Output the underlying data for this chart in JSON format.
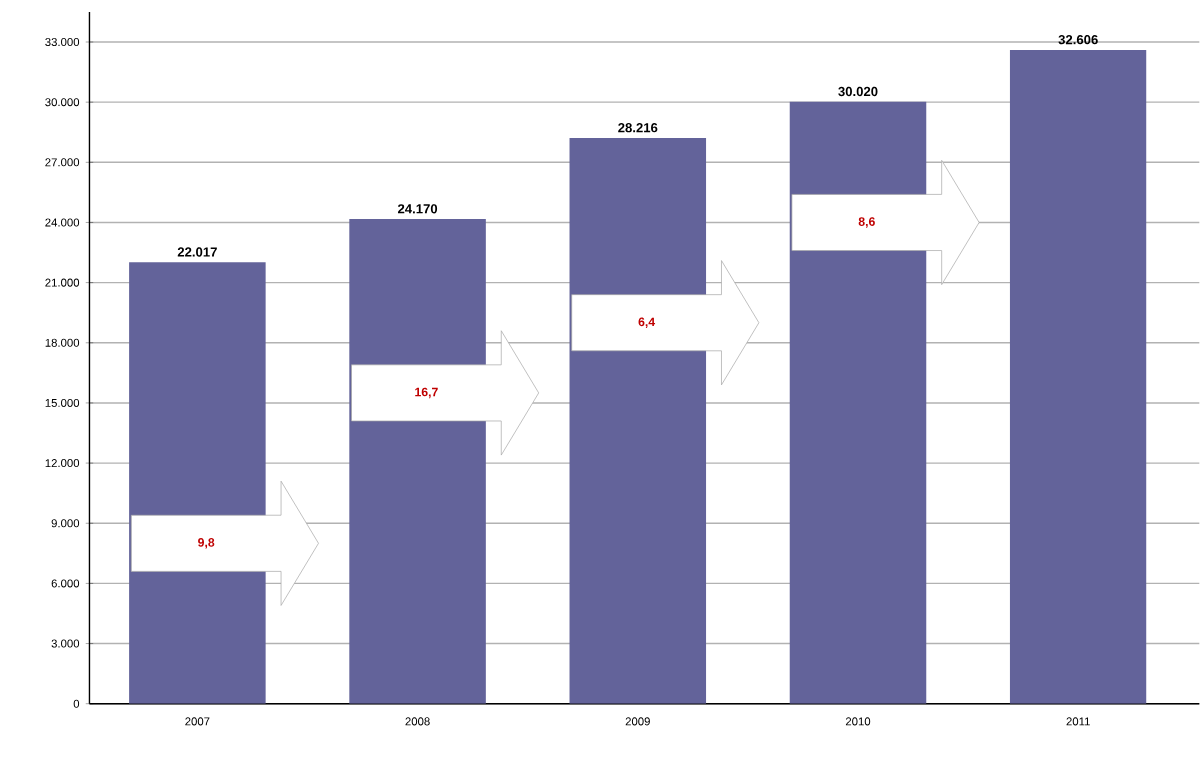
{
  "chart_data": {
    "type": "bar",
    "categories": [
      "2007",
      "2008",
      "2009",
      "2010",
      "2011"
    ],
    "values": [
      22017,
      24170,
      28216,
      30020,
      32606
    ],
    "color": "#63639a",
    "value_labels": [
      "22.017",
      "24.170",
      "28.216",
      "30.020",
      "32.606"
    ],
    "ylim": [
      0,
      34500
    ],
    "yticks": [
      {
        "value": 0,
        "label": "0"
      },
      {
        "value": 3000,
        "label": "3.000"
      },
      {
        "value": 6000,
        "label": "6.000"
      },
      {
        "value": 9000,
        "label": "9.000"
      },
      {
        "value": 12000,
        "label": "12.000"
      },
      {
        "value": 15000,
        "label": "15.000"
      },
      {
        "value": 18000,
        "label": "18.000"
      },
      {
        "value": 21000,
        "label": "21.000"
      },
      {
        "value": 24000,
        "label": "24.000"
      },
      {
        "value": 27000,
        "label": "27.000"
      },
      {
        "value": 30000,
        "label": "30.000"
      },
      {
        "value": 33000,
        "label": "33.000"
      }
    ],
    "grid": "y",
    "annotations": [
      "9,8",
      "16,7",
      "6,4",
      "8,6"
    ]
  }
}
